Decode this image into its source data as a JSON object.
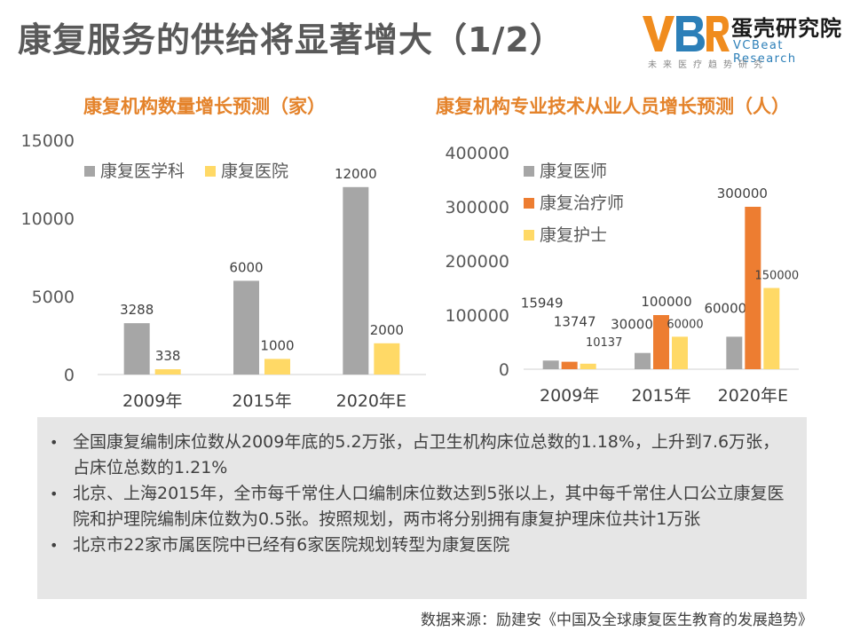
{
  "page": {
    "title": "康复服务的供给将显著增大（1/2）"
  },
  "logo": {
    "mark": "VBR",
    "name_cn": "蛋壳研究院",
    "name_en": "VCBeat Research",
    "tagline": "未来医疗趋势研究"
  },
  "colors": {
    "accent": "#e4832b",
    "gray": "#a6a6a6",
    "orange": "#ed7d31",
    "yellow": "#ffd966",
    "notes_bg": "#e6e6e6"
  },
  "chart_data": [
    {
      "type": "bar",
      "title": "康复机构数量增长预测（家）",
      "categories": [
        "2009年",
        "2015年",
        "2020年E"
      ],
      "series": [
        {
          "name": "康复医学科",
          "values": [
            3288,
            6000,
            12000
          ],
          "color": "#a6a6a6"
        },
        {
          "name": "康复医院",
          "values": [
            338,
            1000,
            2000
          ],
          "color": "#ffd966"
        }
      ],
      "ylim": [
        0,
        15000
      ],
      "yticks": [
        0,
        5000,
        10000,
        15000
      ],
      "legend": "top-left",
      "grid": false
    },
    {
      "type": "bar",
      "title": "康复机构专业技术从业人员增长预测（人）",
      "categories": [
        "2009年",
        "2015年",
        "2020年E"
      ],
      "series": [
        {
          "name": "康复医师",
          "values": [
            15949,
            30000,
            60000
          ],
          "color": "#a6a6a6"
        },
        {
          "name": "康复治疗师",
          "values": [
            13747,
            100000,
            300000
          ],
          "color": "#ed7d31"
        },
        {
          "name": "康复护士",
          "values": [
            10137,
            60000,
            150000
          ],
          "color": "#ffd966"
        }
      ],
      "ylim": [
        0,
        400000
      ],
      "yticks": [
        0,
        100000,
        200000,
        300000,
        400000
      ],
      "legend": "top-left",
      "grid": false
    }
  ],
  "notes": [
    "全国康复编制床位数从2009年底的5.2万张，占卫生机构床位总数的1.18%，上升到7.6万张，占床位总数的1.21%",
    "北京、上海2015年，全市每千常住人口编制床位数达到5张以上，其中每千常住人口公立康复医院和护理院编制床位数为0.5张。按照规划，两市将分别拥有康复护理床位共计1万张",
    "北京市22家市属医院中已经有6家医院规划转型为康复医院"
  ],
  "source": "数据来源：励建安《中国及全球康复医生教育的发展趋势》"
}
